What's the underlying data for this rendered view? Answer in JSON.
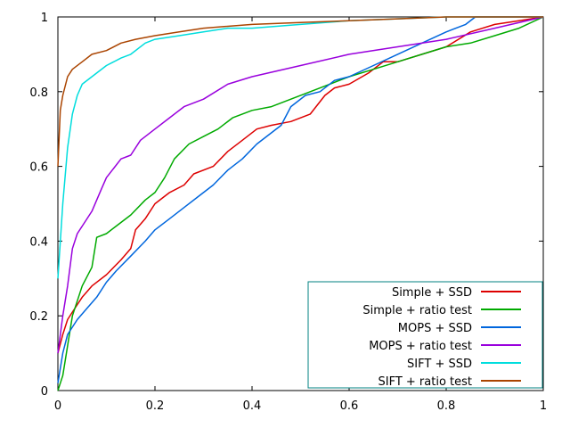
{
  "chart_data": {
    "type": "line",
    "title": "",
    "xlabel": "",
    "ylabel": "",
    "xlim": [
      0,
      1
    ],
    "ylim": [
      0,
      1
    ],
    "grid": false,
    "legend_position": "bottom-right",
    "x_ticks": [
      "0",
      "0.2",
      "0.4",
      "0.6",
      "0.8",
      "1"
    ],
    "y_ticks": [
      "0",
      "0.2",
      "0.4",
      "0.6",
      "0.8",
      "1"
    ],
    "series": [
      {
        "name": "Simple + SSD",
        "color": "#dd0000",
        "points": [
          [
            0,
            0.1
          ],
          [
            0.01,
            0.15
          ],
          [
            0.02,
            0.19
          ],
          [
            0.03,
            0.21
          ],
          [
            0.04,
            0.23
          ],
          [
            0.05,
            0.25
          ],
          [
            0.07,
            0.28
          ],
          [
            0.1,
            0.31
          ],
          [
            0.13,
            0.35
          ],
          [
            0.15,
            0.38
          ],
          [
            0.16,
            0.43
          ],
          [
            0.18,
            0.46
          ],
          [
            0.2,
            0.5
          ],
          [
            0.23,
            0.53
          ],
          [
            0.26,
            0.55
          ],
          [
            0.28,
            0.58
          ],
          [
            0.32,
            0.6
          ],
          [
            0.35,
            0.64
          ],
          [
            0.38,
            0.67
          ],
          [
            0.41,
            0.7
          ],
          [
            0.44,
            0.71
          ],
          [
            0.48,
            0.72
          ],
          [
            0.52,
            0.74
          ],
          [
            0.55,
            0.79
          ],
          [
            0.57,
            0.81
          ],
          [
            0.6,
            0.82
          ],
          [
            0.64,
            0.85
          ],
          [
            0.67,
            0.88
          ],
          [
            0.7,
            0.88
          ],
          [
            0.75,
            0.9
          ],
          [
            0.8,
            0.92
          ],
          [
            0.85,
            0.96
          ],
          [
            0.9,
            0.98
          ],
          [
            0.95,
            0.99
          ],
          [
            1,
            1
          ]
        ]
      },
      {
        "name": "Simple + ratio test",
        "color": "#00aa00",
        "points": [
          [
            0,
            0
          ],
          [
            0.01,
            0.04
          ],
          [
            0.02,
            0.12
          ],
          [
            0.03,
            0.2
          ],
          [
            0.05,
            0.28
          ],
          [
            0.07,
            0.33
          ],
          [
            0.08,
            0.41
          ],
          [
            0.1,
            0.42
          ],
          [
            0.12,
            0.44
          ],
          [
            0.15,
            0.47
          ],
          [
            0.18,
            0.51
          ],
          [
            0.2,
            0.53
          ],
          [
            0.22,
            0.57
          ],
          [
            0.24,
            0.62
          ],
          [
            0.27,
            0.66
          ],
          [
            0.3,
            0.68
          ],
          [
            0.33,
            0.7
          ],
          [
            0.36,
            0.73
          ],
          [
            0.4,
            0.75
          ],
          [
            0.44,
            0.76
          ],
          [
            0.48,
            0.78
          ],
          [
            0.52,
            0.8
          ],
          [
            0.56,
            0.82
          ],
          [
            0.6,
            0.84
          ],
          [
            0.65,
            0.86
          ],
          [
            0.7,
            0.88
          ],
          [
            0.75,
            0.9
          ],
          [
            0.8,
            0.92
          ],
          [
            0.85,
            0.93
          ],
          [
            0.9,
            0.95
          ],
          [
            0.95,
            0.97
          ],
          [
            1,
            1
          ]
        ]
      },
      {
        "name": "MOPS + SSD",
        "color": "#0066dd",
        "points": [
          [
            0,
            0.02
          ],
          [
            0.01,
            0.1
          ],
          [
            0.02,
            0.15
          ],
          [
            0.04,
            0.19
          ],
          [
            0.06,
            0.22
          ],
          [
            0.08,
            0.25
          ],
          [
            0.1,
            0.29
          ],
          [
            0.12,
            0.32
          ],
          [
            0.15,
            0.36
          ],
          [
            0.18,
            0.4
          ],
          [
            0.2,
            0.43
          ],
          [
            0.23,
            0.46
          ],
          [
            0.26,
            0.49
          ],
          [
            0.29,
            0.52
          ],
          [
            0.32,
            0.55
          ],
          [
            0.35,
            0.59
          ],
          [
            0.38,
            0.62
          ],
          [
            0.41,
            0.66
          ],
          [
            0.44,
            0.69
          ],
          [
            0.46,
            0.71
          ],
          [
            0.48,
            0.76
          ],
          [
            0.51,
            0.79
          ],
          [
            0.54,
            0.8
          ],
          [
            0.57,
            0.83
          ],
          [
            0.6,
            0.84
          ],
          [
            0.65,
            0.87
          ],
          [
            0.7,
            0.9
          ],
          [
            0.75,
            0.93
          ],
          [
            0.8,
            0.96
          ],
          [
            0.84,
            0.98
          ],
          [
            0.86,
            1
          ],
          [
            1,
            1
          ]
        ]
      },
      {
        "name": "MOPS + ratio test",
        "color": "#9900dd",
        "points": [
          [
            0,
            0.1
          ],
          [
            0.01,
            0.2
          ],
          [
            0.02,
            0.28
          ],
          [
            0.03,
            0.38
          ],
          [
            0.04,
            0.42
          ],
          [
            0.05,
            0.44
          ],
          [
            0.07,
            0.48
          ],
          [
            0.09,
            0.54
          ],
          [
            0.1,
            0.57
          ],
          [
            0.13,
            0.62
          ],
          [
            0.15,
            0.63
          ],
          [
            0.17,
            0.67
          ],
          [
            0.2,
            0.7
          ],
          [
            0.23,
            0.73
          ],
          [
            0.26,
            0.76
          ],
          [
            0.3,
            0.78
          ],
          [
            0.35,
            0.82
          ],
          [
            0.4,
            0.84
          ],
          [
            0.5,
            0.87
          ],
          [
            0.6,
            0.9
          ],
          [
            0.7,
            0.92
          ],
          [
            0.8,
            0.94
          ],
          [
            0.9,
            0.97
          ],
          [
            1,
            1
          ]
        ]
      },
      {
        "name": "SIFT + SSD",
        "color": "#00dddd",
        "points": [
          [
            0,
            0.3
          ],
          [
            0.01,
            0.5
          ],
          [
            0.02,
            0.65
          ],
          [
            0.03,
            0.74
          ],
          [
            0.04,
            0.79
          ],
          [
            0.05,
            0.82
          ],
          [
            0.07,
            0.84
          ],
          [
            0.1,
            0.87
          ],
          [
            0.13,
            0.89
          ],
          [
            0.15,
            0.9
          ],
          [
            0.18,
            0.93
          ],
          [
            0.2,
            0.94
          ],
          [
            0.25,
            0.95
          ],
          [
            0.3,
            0.96
          ],
          [
            0.35,
            0.97
          ],
          [
            0.4,
            0.97
          ],
          [
            0.5,
            0.98
          ],
          [
            0.6,
            0.99
          ],
          [
            0.7,
            0.995
          ],
          [
            0.8,
            1
          ],
          [
            1,
            1
          ]
        ]
      },
      {
        "name": "SIFT + ratio test",
        "color": "#aa4400",
        "points": [
          [
            0,
            0.6
          ],
          [
            0.005,
            0.75
          ],
          [
            0.01,
            0.79
          ],
          [
            0.02,
            0.84
          ],
          [
            0.03,
            0.86
          ],
          [
            0.05,
            0.88
          ],
          [
            0.07,
            0.9
          ],
          [
            0.1,
            0.91
          ],
          [
            0.13,
            0.93
          ],
          [
            0.16,
            0.94
          ],
          [
            0.2,
            0.95
          ],
          [
            0.25,
            0.96
          ],
          [
            0.3,
            0.97
          ],
          [
            0.4,
            0.98
          ],
          [
            0.5,
            0.985
          ],
          [
            0.6,
            0.99
          ],
          [
            0.7,
            0.995
          ],
          [
            0.8,
            1
          ],
          [
            1,
            1
          ]
        ]
      }
    ]
  }
}
